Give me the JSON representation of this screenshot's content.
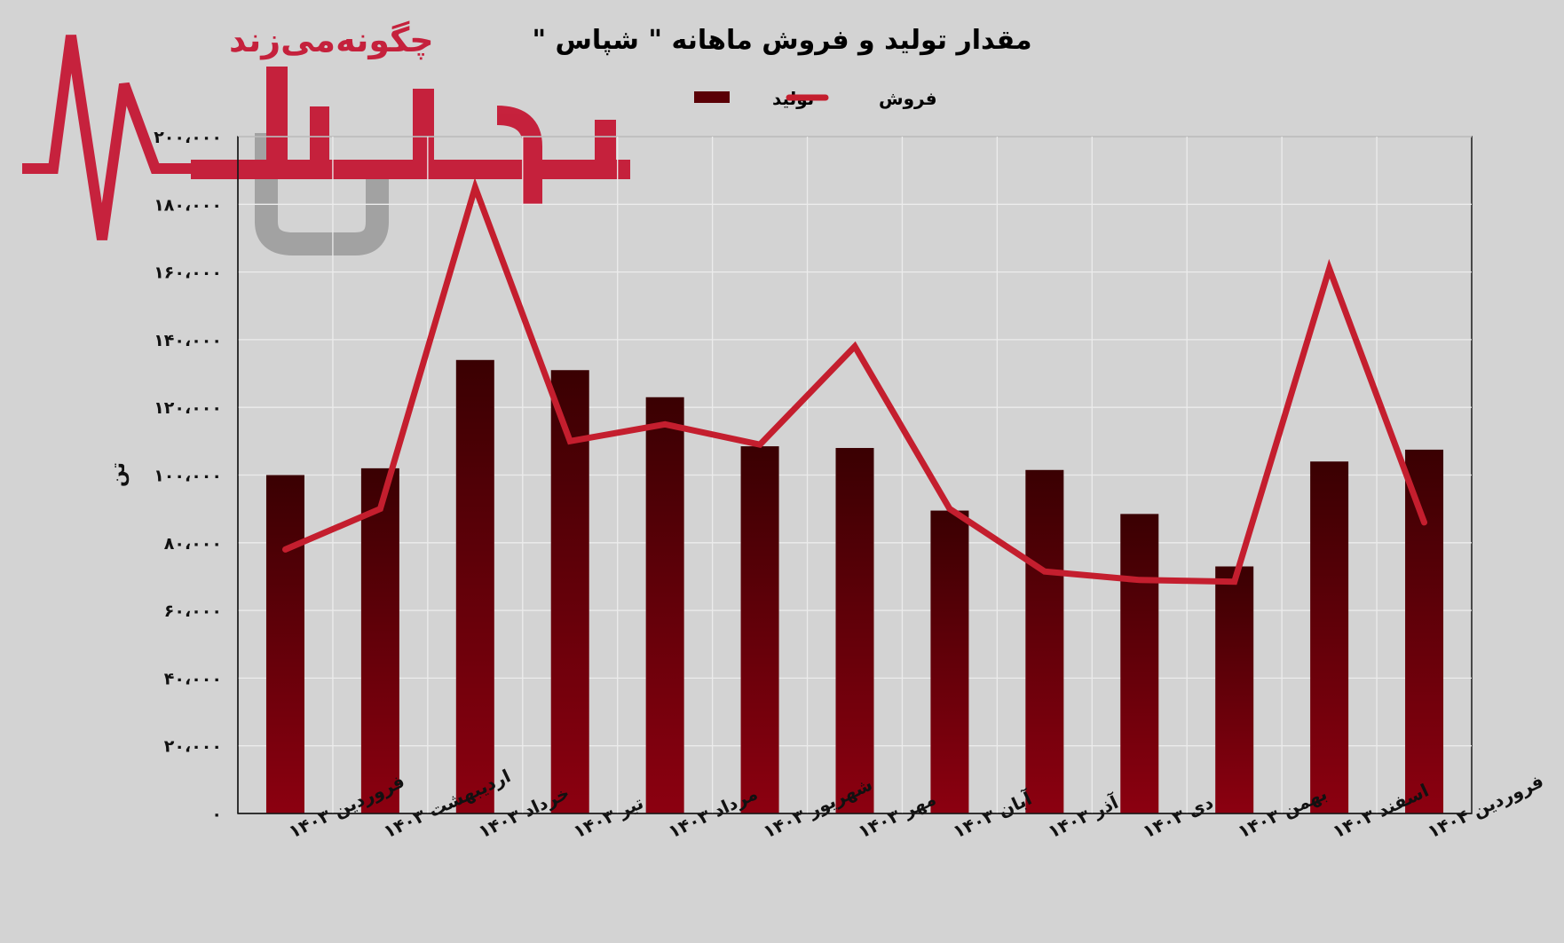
{
  "chart_data": {
    "type": "bar",
    "title": "مقدار تولید و فروش ماهانه \" شپاس \"",
    "ylabel": "تن",
    "xlabel": "",
    "ylim": [
      0,
      200000
    ],
    "y_ticks": [
      "۰",
      "۲۰،۰۰۰",
      "۴۰،۰۰۰",
      "۶۰،۰۰۰",
      "۸۰،۰۰۰",
      "۱۰۰،۰۰۰",
      "۱۲۰،۰۰۰",
      "۱۴۰،۰۰۰",
      "۱۶۰،۰۰۰",
      "۱۸۰،۰۰۰",
      "۲۰۰،۰۰۰"
    ],
    "y_tick_values": [
      0,
      20000,
      40000,
      60000,
      80000,
      100000,
      120000,
      140000,
      160000,
      180000,
      200000
    ],
    "grid": true,
    "legend_position": "top-center",
    "categories": [
      "فروردین ۱۴۰۳",
      "اردیبهشت ۱۴۰۳",
      "خرداد ۱۴۰۳",
      "تیر ۱۴۰۳",
      "مرداد ۱۴۰۳",
      "شهریور ۱۴۰۳",
      "مهر ۱۴۰۳",
      "آبان ۱۴۰۳",
      "آذر ۱۴۰۳",
      "دی ۱۴۰۳",
      "بهمن ۱۴۰۳",
      "اسفند ۱۴۰۳",
      "فروردین ۱۴۰۴"
    ],
    "series": [
      {
        "name": "تولید",
        "kind": "bar",
        "color": "#7a0008",
        "values": [
          100000,
          102000,
          134000,
          131000,
          123000,
          108500,
          108000,
          89500,
          101500,
          88500,
          73000,
          104000,
          107500
        ]
      },
      {
        "name": "فروش",
        "kind": "line",
        "color": "#c41e2e",
        "values": [
          78000,
          90000,
          185000,
          110000,
          115000,
          109000,
          138000,
          90000,
          71500,
          69000,
          68500,
          161000,
          86000
        ]
      }
    ]
  },
  "watermark": {
    "text": "چگونه‌می‌زند",
    "primary_color": "#c41230",
    "secondary_color": "#9e9e9e"
  }
}
